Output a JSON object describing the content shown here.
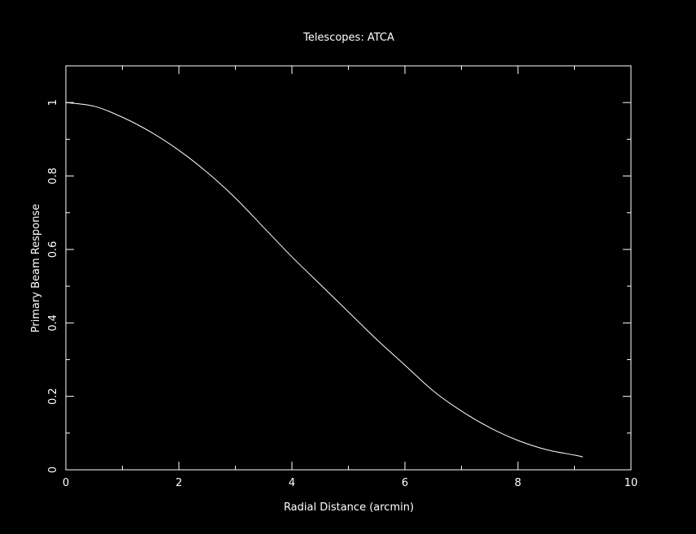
{
  "chart_data": {
    "type": "line",
    "title": "Telescopes: ATCA",
    "xlabel": "Radial Distance (arcmin)",
    "ylabel": "Primary Beam Response",
    "xlim": [
      0,
      10
    ],
    "ylim": [
      0,
      1.1
    ],
    "xticks": [
      0,
      2,
      4,
      6,
      8,
      10
    ],
    "yticks": [
      0,
      0.2,
      0.4,
      0.6,
      0.8,
      1
    ],
    "xtick_labels": [
      "0",
      "2",
      "4",
      "6",
      "8",
      "10"
    ],
    "ytick_labels": [
      "0",
      "0.2",
      "0.4",
      "0.6",
      "0.8",
      "1"
    ],
    "grid": false,
    "colors": {
      "background": "#000000",
      "foreground": "#ffffff"
    },
    "series": [
      {
        "x": [
          0,
          0.5,
          1,
          1.5,
          2,
          2.5,
          3,
          3.5,
          4,
          4.5,
          5,
          5.5,
          6,
          6.5,
          7,
          7.5,
          8,
          8.5,
          9,
          9.15
        ],
        "y": [
          1.0,
          0.99,
          0.96,
          0.92,
          0.87,
          0.81,
          0.74,
          0.66,
          0.58,
          0.505,
          0.43,
          0.355,
          0.285,
          0.215,
          0.16,
          0.115,
          0.08,
          0.055,
          0.04,
          0.035
        ]
      }
    ]
  }
}
